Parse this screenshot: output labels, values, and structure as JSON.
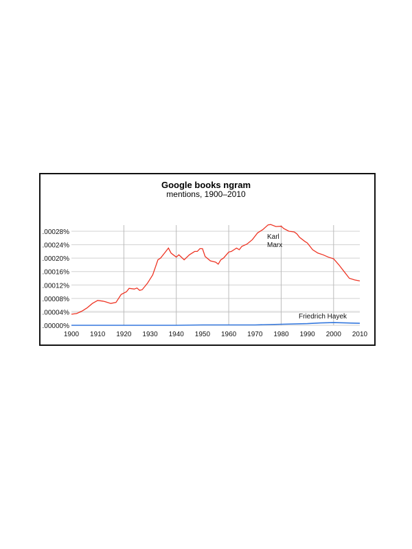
{
  "chart_data": {
    "type": "line",
    "title": "Google books ngram",
    "subtitle": "mentions, 1900–2010",
    "xlabel": "",
    "ylabel": "",
    "xlim": [
      1900,
      2010
    ],
    "ylim": [
      0,
      0.0003
    ],
    "x_ticks": [
      "1900",
      "1910",
      "1920",
      "1930",
      "1940",
      "1950",
      "1960",
      "1970",
      "1980",
      "1990",
      "2000",
      "2010"
    ],
    "y_ticks": [
      ".00000%",
      ".00004%",
      ".00008%",
      ".00012%",
      ".00016%",
      ".00020%",
      ".00024%",
      ".00028%"
    ],
    "y_tick_values": [
      0,
      4e-05,
      8e-05,
      0.00012,
      0.00016,
      0.0002,
      0.00024,
      0.00028
    ],
    "grid": true,
    "series": [
      {
        "name": "Karl Marx",
        "label_lines": [
          "Karl",
          "Marx"
        ],
        "color": "#ee3322",
        "x": [
          1900,
          1902,
          1904,
          1906,
          1908,
          1910,
          1912,
          1913,
          1915,
          1917,
          1919,
          1921,
          1922,
          1924,
          1925,
          1926,
          1927,
          1929,
          1931,
          1933,
          1934,
          1936,
          1937,
          1938,
          1940,
          1941,
          1943,
          1945,
          1947,
          1948,
          1949,
          1950,
          1951,
          1953,
          1955,
          1956,
          1957,
          1958,
          1960,
          1961,
          1963,
          1964,
          1965,
          1967,
          1969,
          1971,
          1973,
          1975,
          1976,
          1978,
          1980,
          1981,
          1983,
          1985,
          1986,
          1987,
          1989,
          1990,
          1992,
          1994,
          1996,
          1998,
          2000,
          2002,
          2004,
          2006,
          2008,
          2010
        ],
        "y": [
          3.3e-05,
          3.5e-05,
          4.2e-05,
          5.2e-05,
          6.5e-05,
          7.4e-05,
          7.2e-05,
          7e-05,
          6.5e-05,
          6.8e-05,
          9.2e-05,
          0.0001,
          0.00011,
          0.000108,
          0.000111,
          0.000104,
          0.000106,
          0.000125,
          0.00015,
          0.000195,
          0.0002,
          0.00022,
          0.00023,
          0.000215,
          0.000203,
          0.00021,
          0.000195,
          0.00021,
          0.00022,
          0.00022,
          0.000228,
          0.000228,
          0.000205,
          0.000192,
          0.000188,
          0.000182,
          0.000195,
          0.0002,
          0.000218,
          0.00022,
          0.00023,
          0.000225,
          0.000235,
          0.000242,
          0.000255,
          0.000275,
          0.000285,
          0.000299,
          0.0003,
          0.000294,
          0.000295,
          0.000288,
          0.00028,
          0.000278,
          0.000272,
          0.000262,
          0.00025,
          0.000245,
          0.000225,
          0.000215,
          0.00021,
          0.000203,
          0.000198,
          0.00018,
          0.00016,
          0.00014,
          0.000135,
          0.000132
        ]
      },
      {
        "name": "Friedrich Hayek",
        "label_lines": [
          "Friedrich Hayek"
        ],
        "color": "#3377dd",
        "x": [
          1900,
          1940,
          1950,
          1960,
          1970,
          1980,
          1990,
          1995,
          2000,
          2005,
          2010
        ],
        "y": [
          0,
          0,
          1e-06,
          1e-06,
          1e-06,
          3e-06,
          5e-06,
          7e-06,
          8e-06,
          7e-06,
          6e-06
        ]
      }
    ]
  }
}
